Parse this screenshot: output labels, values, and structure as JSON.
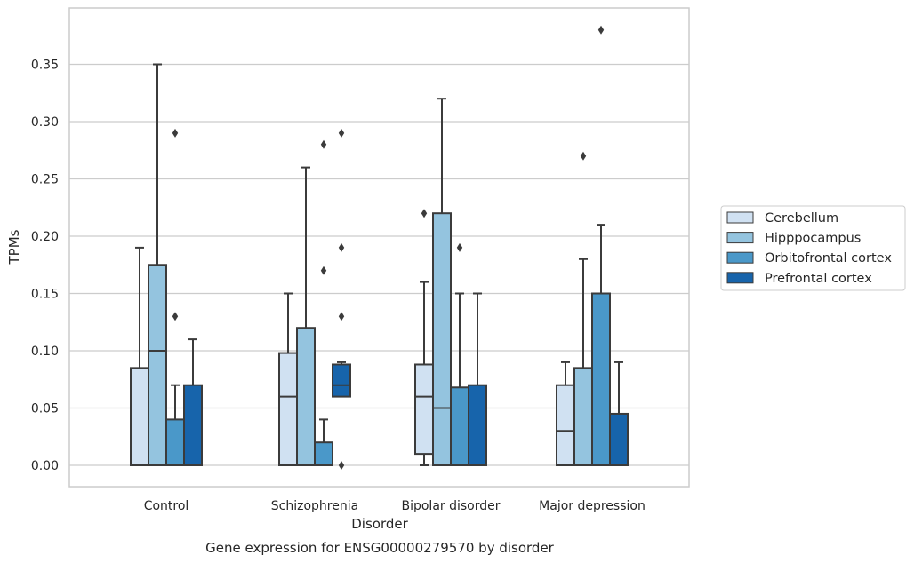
{
  "chart_data": {
    "type": "box",
    "xlabel": "Disorder",
    "ylabel": "TPMs",
    "caption": "Gene expression for ENSG00000279570 by disorder",
    "ylim": [
      -0.018,
      0.398
    ],
    "yticks": [
      0.0,
      0.05,
      0.1,
      0.15,
      0.2,
      0.25,
      0.3,
      0.35
    ],
    "ytick_labels": [
      "0.00",
      "0.05",
      "0.10",
      "0.15",
      "0.20",
      "0.25",
      "0.30",
      "0.35"
    ],
    "grid": "horizontal",
    "legend_position": "right",
    "categories": [
      "Control",
      "Schizophrenia",
      "Bipolar disorder",
      "Major depression"
    ],
    "series": [
      {
        "name": "Cerebellum",
        "color": "#d0e1f2",
        "boxes": [
          {
            "q1": 0.0,
            "median": 0.0,
            "q3": 0.085,
            "whisker_low": 0.0,
            "whisker_high": 0.19,
            "outliers": []
          },
          {
            "q1": 0.0,
            "median": 0.06,
            "q3": 0.098,
            "whisker_low": 0.0,
            "whisker_high": 0.15,
            "outliers": []
          },
          {
            "q1": 0.01,
            "median": 0.06,
            "q3": 0.088,
            "whisker_low": 0.0,
            "whisker_high": 0.16,
            "outliers": [
              0.22
            ]
          },
          {
            "q1": 0.0,
            "median": 0.03,
            "q3": 0.07,
            "whisker_low": 0.0,
            "whisker_high": 0.09,
            "outliers": []
          }
        ]
      },
      {
        "name": "Hipppocampus",
        "color": "#94c4df",
        "boxes": [
          {
            "q1": 0.0,
            "median": 0.1,
            "q3": 0.175,
            "whisker_low": 0.0,
            "whisker_high": 0.35,
            "outliers": []
          },
          {
            "q1": 0.0,
            "median": 0.0,
            "q3": 0.12,
            "whisker_low": 0.0,
            "whisker_high": 0.26,
            "outliers": []
          },
          {
            "q1": 0.0,
            "median": 0.05,
            "q3": 0.22,
            "whisker_low": 0.0,
            "whisker_high": 0.32,
            "outliers": []
          },
          {
            "q1": 0.0,
            "median": 0.0,
            "q3": 0.085,
            "whisker_low": 0.0,
            "whisker_high": 0.18,
            "outliers": [
              0.27
            ]
          }
        ]
      },
      {
        "name": "Orbitofrontal cortex",
        "color": "#4a98c9",
        "boxes": [
          {
            "q1": 0.0,
            "median": 0.0,
            "q3": 0.04,
            "whisker_low": 0.0,
            "whisker_high": 0.07,
            "outliers": [
              0.13,
              0.29
            ]
          },
          {
            "q1": 0.0,
            "median": 0.0,
            "q3": 0.02,
            "whisker_low": 0.0,
            "whisker_high": 0.04,
            "outliers": [
              0.17,
              0.28
            ]
          },
          {
            "q1": 0.0,
            "median": 0.0,
            "q3": 0.068,
            "whisker_low": 0.0,
            "whisker_high": 0.15,
            "outliers": [
              0.19
            ]
          },
          {
            "q1": 0.0,
            "median": 0.0,
            "q3": 0.15,
            "whisker_low": 0.0,
            "whisker_high": 0.21,
            "outliers": [
              0.38
            ]
          }
        ]
      },
      {
        "name": "Prefrontal cortex",
        "color": "#1764ab",
        "boxes": [
          {
            "q1": 0.0,
            "median": 0.0,
            "q3": 0.07,
            "whisker_low": 0.0,
            "whisker_high": 0.11,
            "outliers": []
          },
          {
            "q1": 0.06,
            "median": 0.07,
            "q3": 0.088,
            "whisker_low": 0.06,
            "whisker_high": 0.09,
            "outliers": [
              0.0,
              0.13,
              0.19,
              0.29
            ]
          },
          {
            "q1": 0.0,
            "median": 0.0,
            "q3": 0.07,
            "whisker_low": 0.0,
            "whisker_high": 0.15,
            "outliers": []
          },
          {
            "q1": 0.0,
            "median": 0.0,
            "q3": 0.045,
            "whisker_low": 0.0,
            "whisker_high": 0.09,
            "outliers": []
          }
        ]
      }
    ]
  }
}
